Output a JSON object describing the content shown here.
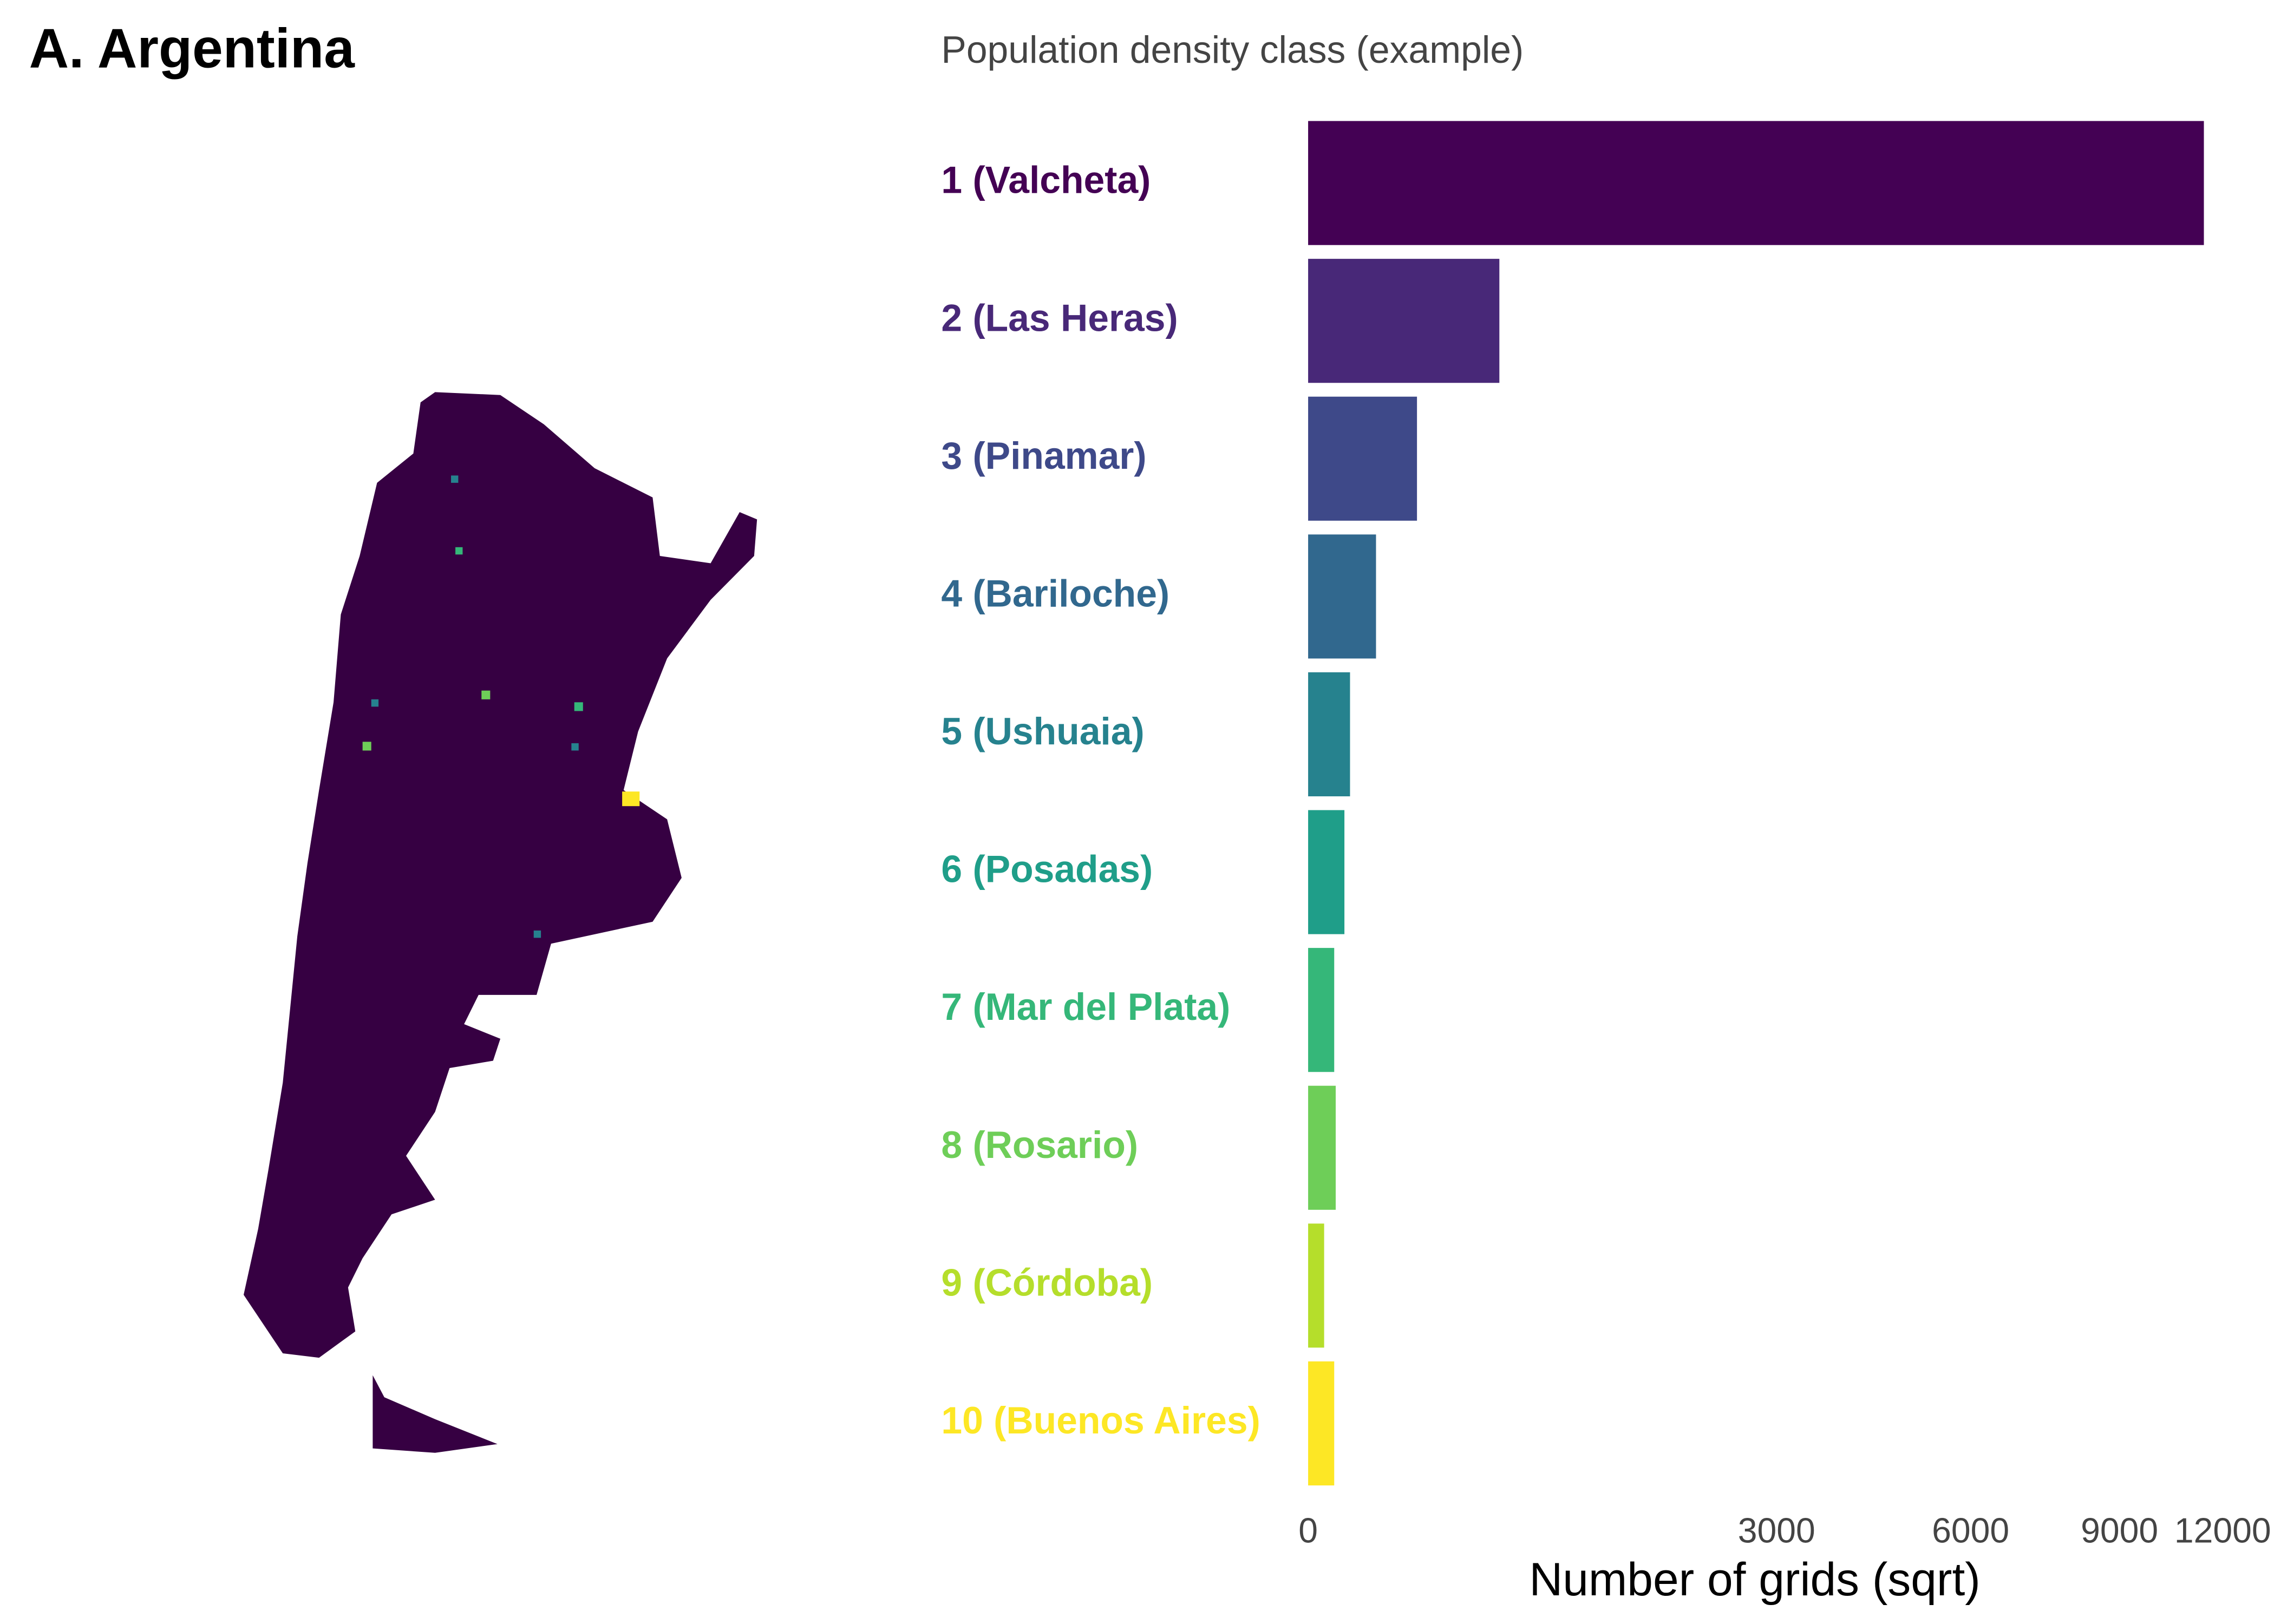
{
  "title": "A. Argentina",
  "chart_data": {
    "type": "bar",
    "orientation": "horizontal",
    "x_scale": "sqrt",
    "subtitle": "Population density class (example)",
    "xlabel": "Number of grids (sqrt)",
    "categories": [
      "1 (Valcheta)",
      "2 (Las Heras)",
      "3 (Pinamar)",
      "4 (Bariloche)",
      "5 (Ushuaia)",
      "6 (Posadas)",
      "7 (Mar del Plata)",
      "8 (Rosario)",
      "9 (Córdoba)",
      "10 (Buenos Aires)"
    ],
    "values": [
      10970,
      500,
      162,
      63,
      24,
      18,
      9.3,
      10.4,
      3.5,
      9.3
    ],
    "colors": [
      "#440154",
      "#482878",
      "#3e4989",
      "#31688e",
      "#26828e",
      "#1f9e89",
      "#35b779",
      "#6ece58",
      "#b5de2b",
      "#fde725"
    ],
    "xlim": [
      0,
      12000
    ],
    "xticks": [
      0,
      3000,
      6000,
      9000,
      12000
    ],
    "grid": false
  }
}
